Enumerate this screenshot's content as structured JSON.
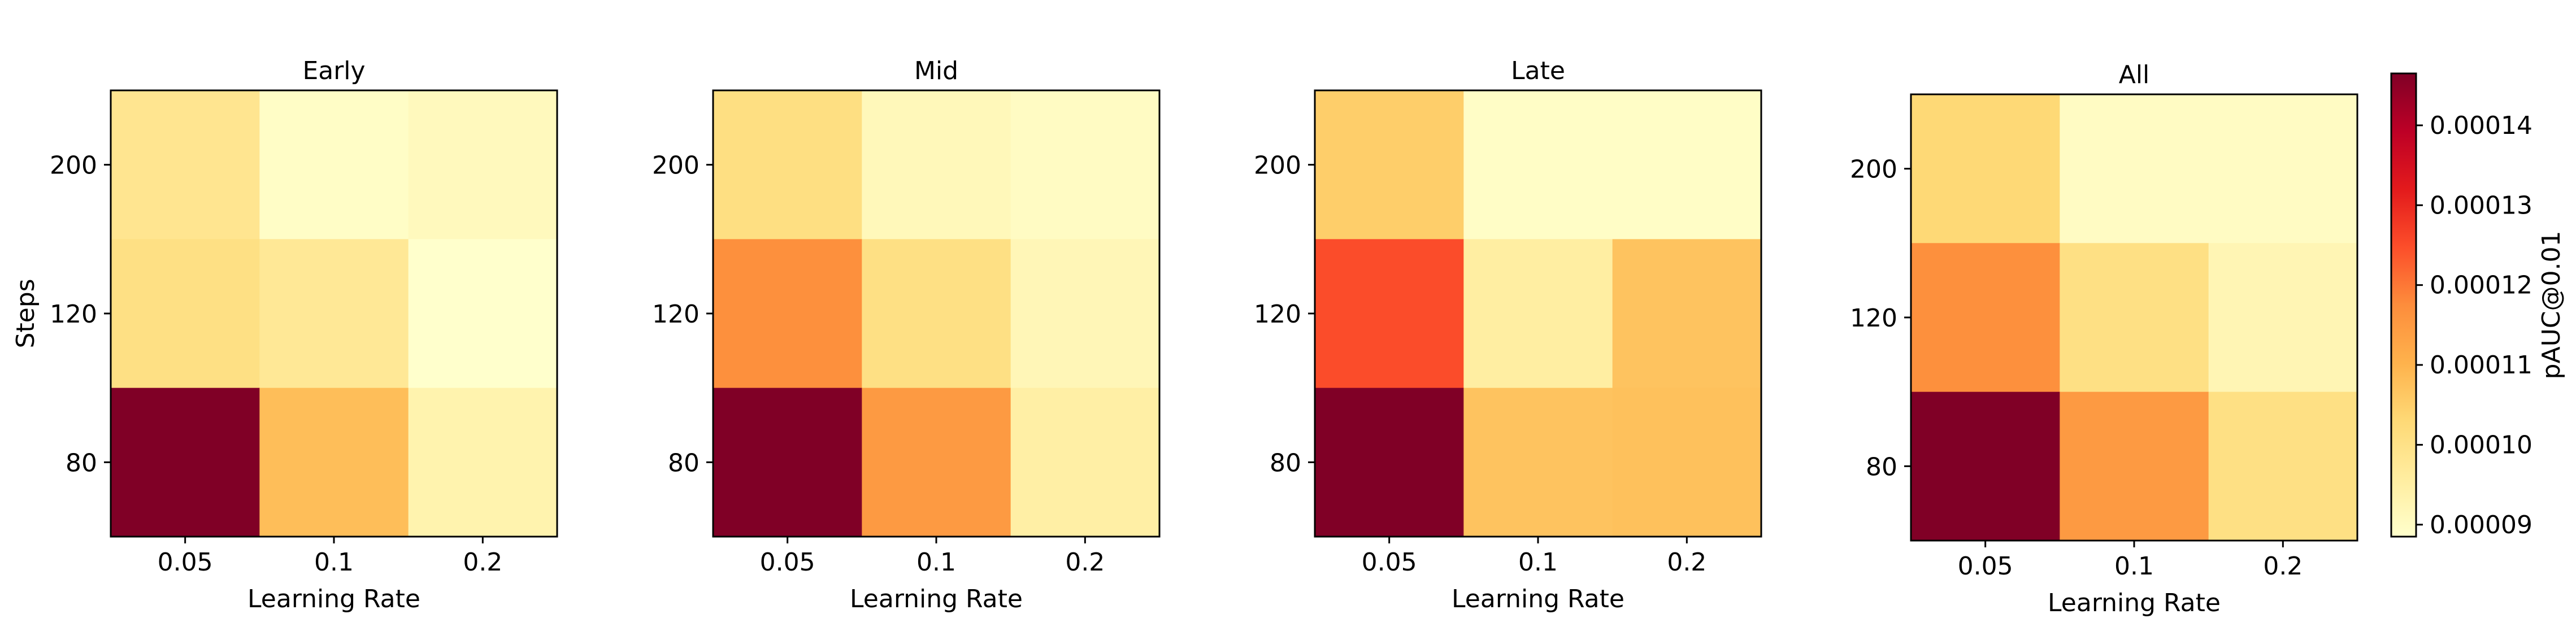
{
  "chart_data": {
    "type": "heatmap",
    "colormap": "YlOrRd",
    "colorbar": {
      "label": "pAUC@0.01",
      "range": [
        8.85e-05,
        0.0001465
      ],
      "ticks": [
        9e-05,
        0.0001,
        0.00011,
        0.00012,
        0.00013,
        0.00014
      ],
      "tick_labels": [
        "0.00009",
        "0.00010",
        "0.00011",
        "0.00012",
        "0.00013",
        "0.00014"
      ]
    },
    "x_categories": [
      "0.05",
      "0.1",
      "0.2"
    ],
    "y_categories": [
      "200",
      "120",
      "80"
    ],
    "xlabel": "Learning Rate",
    "ylabel": "Steps",
    "panels": [
      {
        "title": "Early",
        "values": [
          [
            9.85e-05,
            8.95e-05,
            9.1e-05
          ],
          [
            0.0001005,
            9.75e-05,
            8.85e-05
          ],
          [
            0.0001465,
            0.000108,
            9.35e-05
          ]
        ]
      },
      {
        "title": "Mid",
        "values": [
          [
            0.000101,
            9.15e-05,
            9e-05
          ],
          [
            0.000117,
            0.0001005,
            9.2e-05
          ],
          [
            0.0001465,
            0.000115,
            9.5e-05
          ]
        ]
      },
      {
        "title": "Late",
        "values": [
          [
            0.000105,
            8.95e-05,
            8.95e-05
          ],
          [
            0.000125,
            9.55e-05,
            0.000107
          ],
          [
            0.0001465,
            0.000107,
            0.0001075
          ]
        ]
      },
      {
        "title": "All",
        "values": [
          [
            0.000103,
            9e-05,
            9e-05
          ],
          [
            0.000117,
            0.0001005,
            9.25e-05
          ],
          [
            0.0001465,
            0.000115,
            0.0001005
          ]
        ]
      }
    ]
  }
}
